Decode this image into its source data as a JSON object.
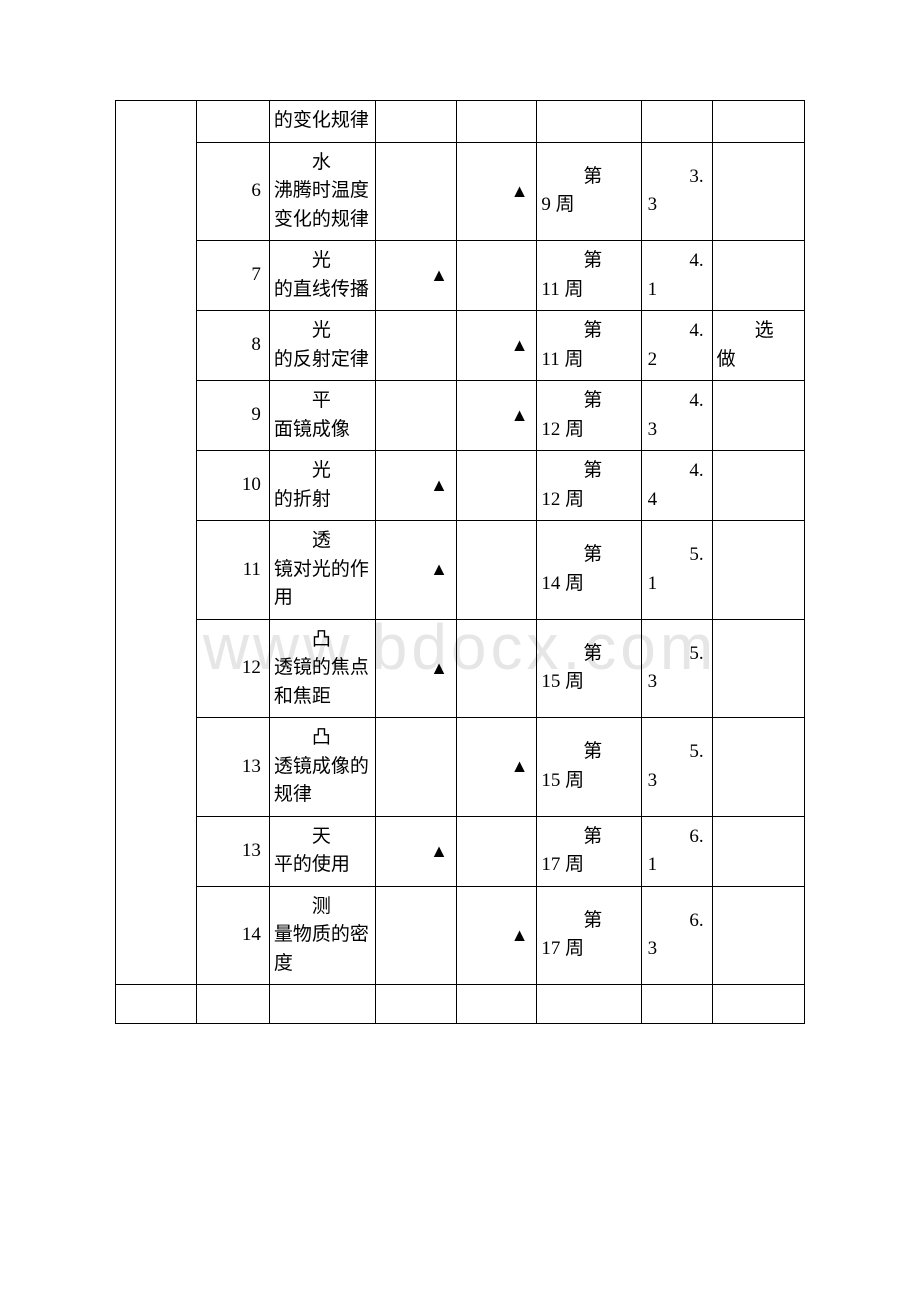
{
  "watermark": "www.bdocx.com",
  "triangle": "▲",
  "header_partial": "的变化规律",
  "rows": [
    {
      "n": "6",
      "name_top": "水",
      "name_rest": "沸腾时温度变化的规律",
      "col3": "",
      "col4": "▲",
      "week": "9",
      "sec": "3.3",
      "note": ""
    },
    {
      "n": "7",
      "name_top": "光",
      "name_rest": "的直线传播",
      "col3": "▲",
      "col4": "",
      "week": "11",
      "sec": "4.1",
      "note": ""
    },
    {
      "n": "8",
      "name_top": "光",
      "name_rest": "的反射定律",
      "col3": "",
      "col4": "▲",
      "week": "11",
      "sec": "4.2",
      "note_top": "选",
      "note_rest": "做"
    },
    {
      "n": "9",
      "name_top": "平",
      "name_rest": "面镜成像",
      "col3": "",
      "col4": "▲",
      "week": "12",
      "sec": "4.3",
      "note": ""
    },
    {
      "n": "10",
      "name_top": "光",
      "name_rest": "的折射",
      "col3": "▲",
      "col4": "",
      "week": "12",
      "sec": "4.4",
      "note": ""
    },
    {
      "n": "11",
      "name_top": "透",
      "name_rest": "镜对光的作用",
      "col3": "▲",
      "col4": "",
      "week": "14",
      "sec": "5.1",
      "note": ""
    },
    {
      "n": "12",
      "name_top": "凸",
      "name_rest": "透镜的焦点和焦距",
      "col3": "▲",
      "col4": "",
      "week": "15",
      "sec": "5.3",
      "note": ""
    },
    {
      "n": "13",
      "name_top": "凸",
      "name_rest": "透镜成像的规律",
      "col3": "",
      "col4": "▲",
      "week": "15",
      "sec": "5.3",
      "note": ""
    },
    {
      "n": "13",
      "name_top": "天",
      "name_rest": "平的使用",
      "col3": "▲",
      "col4": "",
      "week": "17",
      "sec": "6.1",
      "note": ""
    },
    {
      "n": "14",
      "name_top": "测",
      "name_rest": "量物质的密度",
      "col3": "",
      "col4": "▲",
      "week": "17",
      "sec": "6.3",
      "note": ""
    }
  ]
}
